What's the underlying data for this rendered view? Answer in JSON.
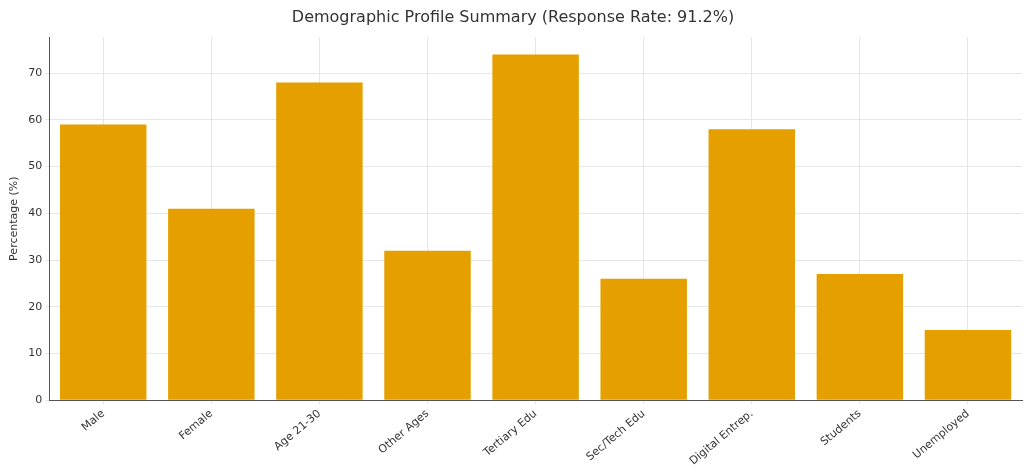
{
  "chart_data": {
    "type": "bar",
    "title": "Demographic Profile Summary (Response Rate: 91.2%)",
    "ylabel": "Percentage (%)",
    "categories": [
      "Male",
      "Female",
      "Age 21-30",
      "Other Ages",
      "Tertiary Edu",
      "Sec/Tech Edu",
      "Digital Entrep.",
      "Students",
      "Unemployed"
    ],
    "values": [
      59,
      41,
      68,
      32,
      74,
      26,
      58,
      27,
      15
    ],
    "color": "#e5a000",
    "ylim": [
      0,
      77.7
    ],
    "yticks": [
      0,
      10,
      20,
      30,
      40,
      50,
      60,
      70
    ],
    "grid": true
  }
}
